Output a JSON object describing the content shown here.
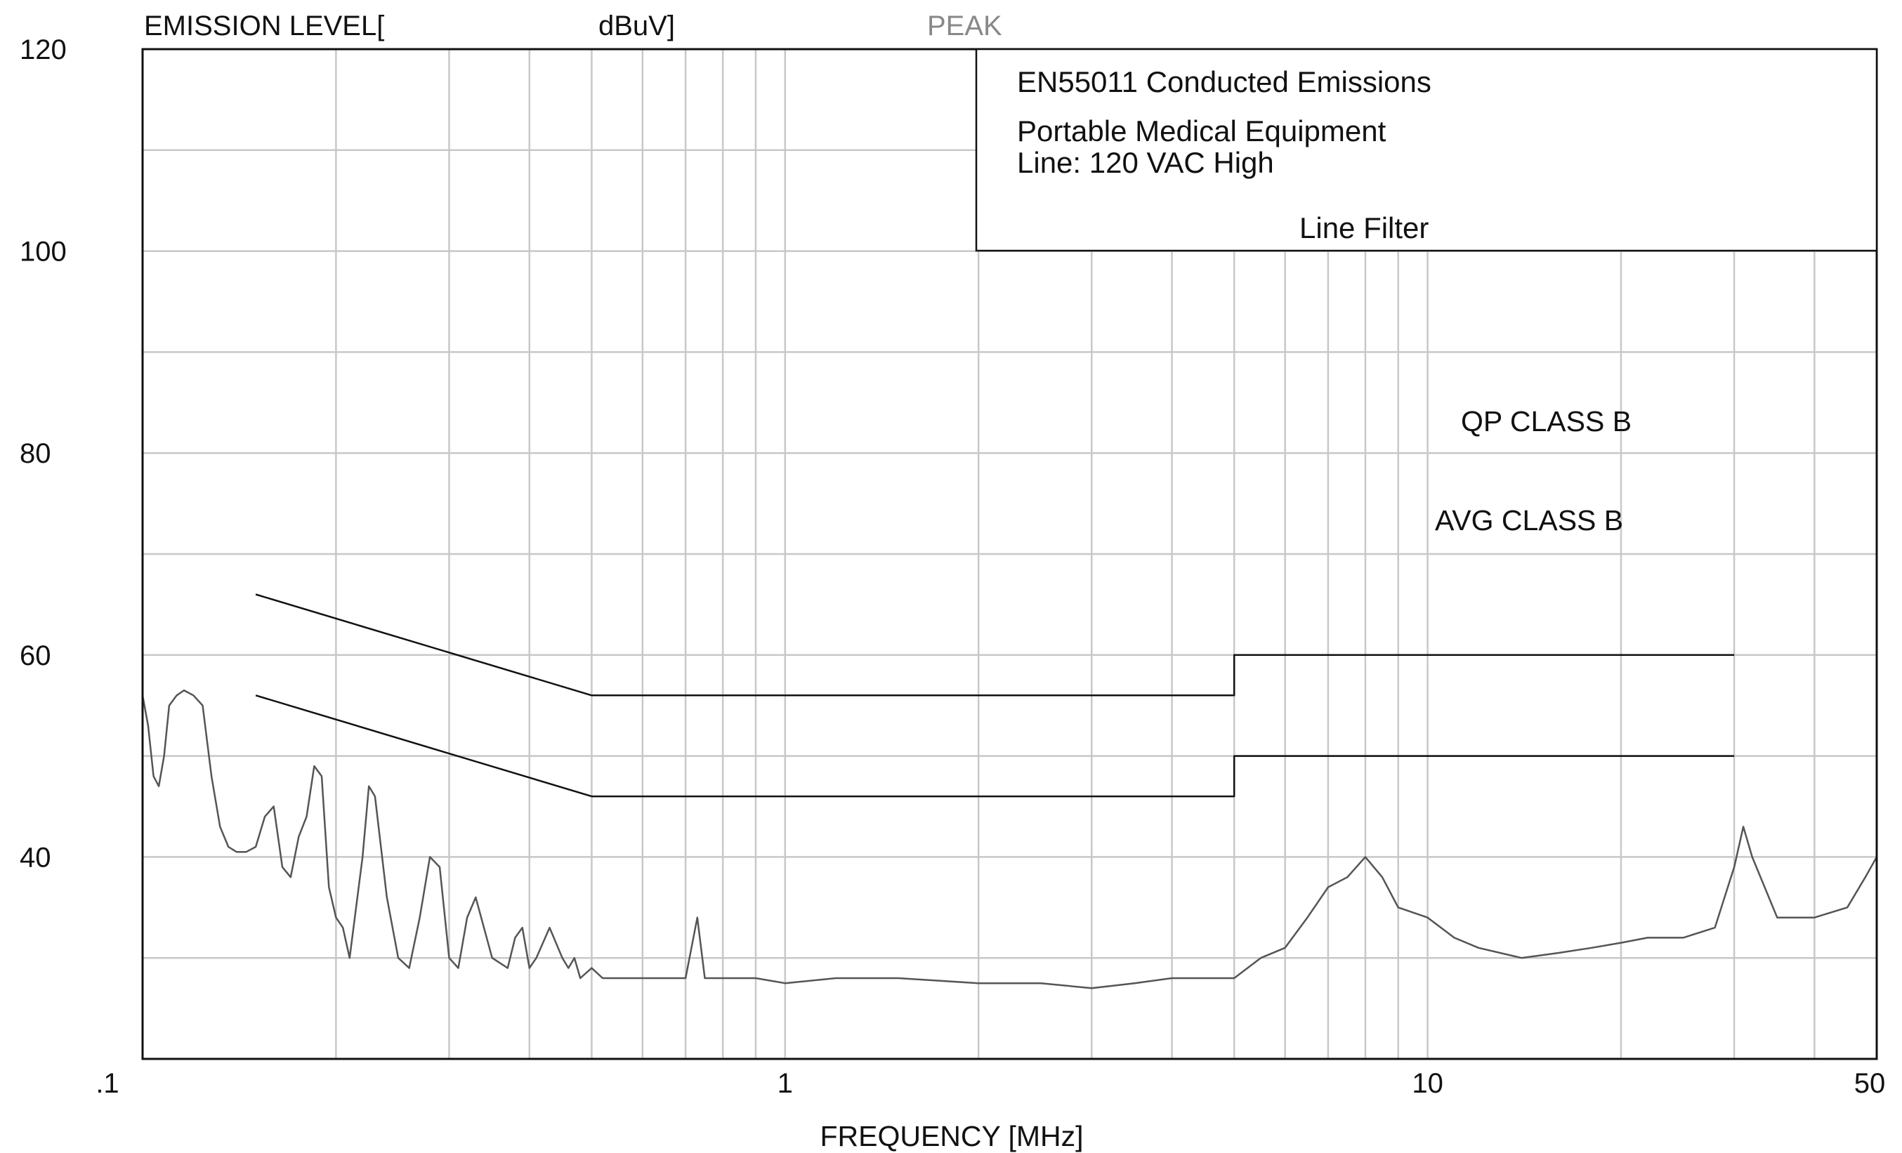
{
  "chart_data": {
    "type": "line",
    "header": {
      "ylabel_part1": "EMISSION LEVEL[",
      "ylabel_part2": "dBuV]",
      "detector": "PEAK"
    },
    "xlabel": "FREQUENCY [MHz]",
    "xscale": "log",
    "xlim": [
      0.1,
      50
    ],
    "ylim": [
      20,
      120
    ],
    "grid": true,
    "x_tick_labels": [
      {
        "value": 0.1,
        "label": ".1"
      },
      {
        "value": 1,
        "label": "1"
      },
      {
        "value": 10,
        "label": "10"
      },
      {
        "value": 50,
        "label": "50"
      }
    ],
    "y_tick_labels": [
      {
        "value": 40,
        "label": "40"
      },
      {
        "value": 60,
        "label": "60"
      },
      {
        "value": 80,
        "label": "80"
      },
      {
        "value": 100,
        "label": "100"
      },
      {
        "value": 120,
        "label": "120"
      }
    ],
    "legend_box": {
      "line1": "EN55011 Conducted Emissions",
      "line2": "Portable Medical Equipment",
      "line3": "Line: 120 VAC High",
      "line4": "Line Filter",
      "placement": "top-right"
    },
    "limit_labels": {
      "qp": "QP CLASS B",
      "avg": "AVG CLASS B"
    },
    "series": [
      {
        "name": "QP CLASS B",
        "x": [
          0.15,
          0.5,
          0.5,
          5,
          5,
          30
        ],
        "y": [
          66,
          56,
          56,
          56,
          60,
          60
        ]
      },
      {
        "name": "AVG CLASS B",
        "x": [
          0.15,
          0.5,
          0.5,
          5,
          5,
          30
        ],
        "y": [
          56,
          46,
          46,
          46,
          50,
          50
        ]
      },
      {
        "name": "PEAK",
        "x": [
          0.1,
          0.102,
          0.104,
          0.106,
          0.108,
          0.11,
          0.113,
          0.116,
          0.12,
          0.124,
          0.128,
          0.132,
          0.136,
          0.14,
          0.145,
          0.15,
          0.155,
          0.16,
          0.165,
          0.17,
          0.175,
          0.18,
          0.185,
          0.19,
          0.195,
          0.2,
          0.205,
          0.21,
          0.22,
          0.225,
          0.23,
          0.24,
          0.25,
          0.26,
          0.27,
          0.28,
          0.29,
          0.3,
          0.31,
          0.32,
          0.33,
          0.35,
          0.37,
          0.38,
          0.39,
          0.4,
          0.41,
          0.43,
          0.45,
          0.46,
          0.47,
          0.48,
          0.5,
          0.52,
          0.55,
          0.6,
          0.65,
          0.7,
          0.73,
          0.75,
          0.8,
          0.9,
          1.0,
          1.2,
          1.5,
          2.0,
          2.5,
          3.0,
          3.5,
          4.0,
          4.5,
          5.0,
          5.5,
          6.0,
          6.5,
          7.0,
          7.5,
          8.0,
          8.5,
          9.0,
          10.0,
          11.0,
          12.0,
          14.0,
          16.0,
          18.0,
          20.0,
          22.0,
          25.0,
          28.0,
          30.0,
          31.0,
          32.0,
          35.0,
          40.0,
          45.0,
          48.0,
          50.0
        ],
        "y": [
          56,
          53,
          48,
          47,
          50,
          55,
          56,
          56.5,
          56,
          55,
          48,
          43,
          41,
          40.5,
          40.5,
          41,
          44,
          45,
          39,
          38,
          42,
          44,
          49,
          48,
          37,
          34,
          33,
          30,
          40,
          47,
          46,
          36,
          30,
          29,
          34,
          40,
          39,
          30,
          29,
          34,
          36,
          30,
          29,
          32,
          33,
          29,
          30,
          33,
          30,
          29,
          30,
          28,
          29,
          28,
          28,
          28,
          28,
          28,
          34,
          28,
          28,
          28,
          27.5,
          28,
          28,
          27.5,
          27.5,
          27,
          27.5,
          28,
          28,
          28,
          30,
          31,
          34,
          37,
          38,
          40,
          38,
          35,
          34,
          32,
          31,
          30,
          30.5,
          31,
          31.5,
          32,
          32,
          33,
          39,
          43,
          40,
          34,
          34,
          35,
          38,
          40
        ]
      }
    ]
  }
}
